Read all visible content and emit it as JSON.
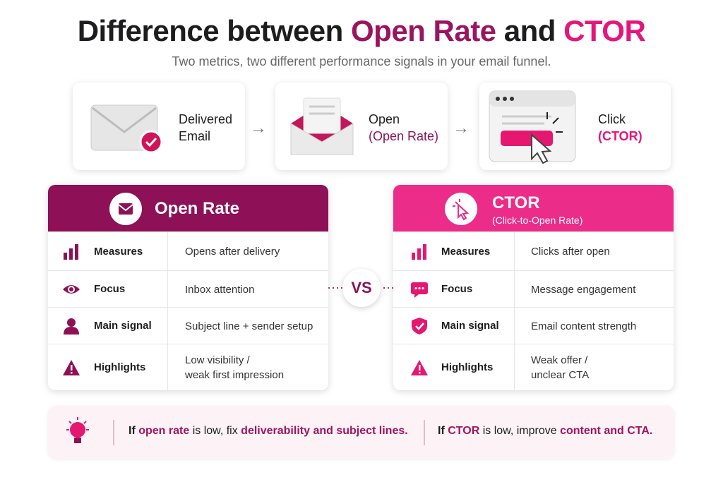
{
  "header": {
    "title": {
      "parts": [
        "Difference between",
        "Open Rate",
        "and",
        "CTOR"
      ]
    },
    "subtitle": "Two metrics, two different performance signals in your email funnel."
  },
  "funnel": [
    {
      "lines": [
        "Delivered",
        "Email"
      ]
    },
    {
      "lines": [
        "Open",
        "(Open Rate)"
      ]
    },
    {
      "lines": [
        "Click",
        "(CTOR)"
      ]
    }
  ],
  "cards": [
    {
      "title": "Open Rate",
      "rows": [
        [
          "Measures",
          "Opens after delivery"
        ],
        [
          "Focus",
          "Inbox attention"
        ],
        [
          "Main signal",
          "Subject line + sender setup"
        ],
        [
          "Highlights",
          "Low visibility /",
          "weak first impression"
        ]
      ]
    },
    {
      "title": "CTOR",
      "subtitle": "(Click-to-Open Rate)",
      "rows": [
        [
          "Measures",
          "Clicks after open"
        ],
        [
          "Focus",
          "Message engagement"
        ],
        [
          "Main signal",
          "Email content strength"
        ],
        [
          "Highlights",
          "Weak offer /",
          "unclear CTA"
        ]
      ]
    }
  ],
  "vs": "VS",
  "tips": [
    [
      "If",
      "open rate",
      "is low, fix",
      "deliverability and subject lines."
    ],
    [
      "If",
      "CTOR",
      "is low, improve",
      "content and CTA."
    ]
  ]
}
